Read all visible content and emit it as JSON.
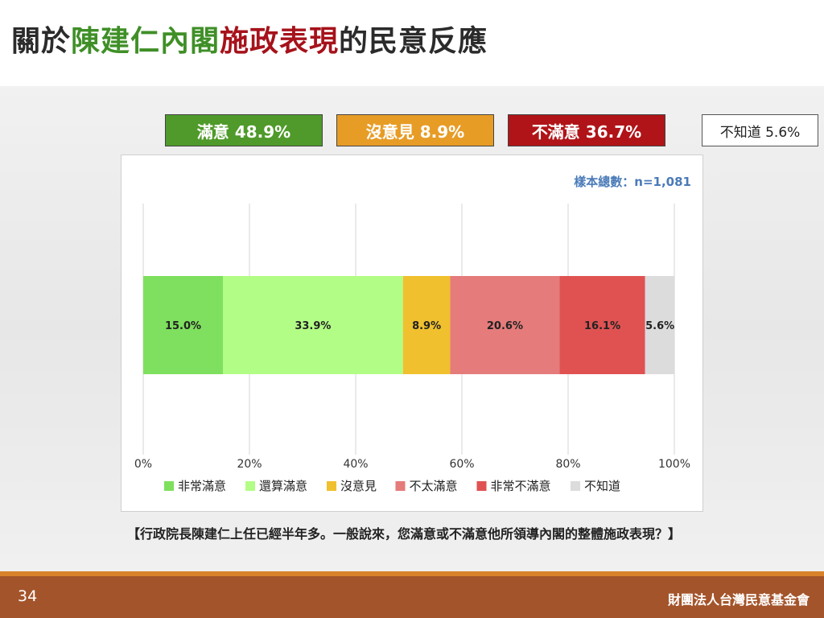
{
  "title": {
    "part1": "關於",
    "part2": "陳建仁內閣",
    "part3": "施政表現",
    "part4": "的民意反應"
  },
  "summary": {
    "satisfied": "滿意 48.9%",
    "neutral": "沒意見 8.9%",
    "dissatisfied": "不滿意 36.7%",
    "dont_know": "不知道 5.6%"
  },
  "sample_note": "樣本總數：n=1,081",
  "question": "【行政院長陳建仁上任已經半年多。一般說來，您滿意或不滿意他所領導內閣的整體施政表現？】",
  "footer": {
    "page": "34",
    "org": "財團法人台灣民意基金會"
  },
  "colors": {
    "title_green": "#3f8f27",
    "title_red": "#a6121b",
    "footer_brown": "#a4542b",
    "footer_orange": "#d9822b"
  },
  "chart_data": {
    "type": "bar",
    "orientation": "horizontal-stacked-100",
    "categories": [
      ""
    ],
    "series": [
      {
        "name": "非常滿意",
        "values": [
          15.0
        ],
        "label": "15.0%",
        "color": "#7ee05e"
      },
      {
        "name": "還算滿意",
        "values": [
          33.9
        ],
        "label": "33.9%",
        "color": "#b2fd85"
      },
      {
        "name": "沒意見",
        "values": [
          8.9
        ],
        "label": "8.9%",
        "color": "#f0c02e"
      },
      {
        "name": "不太滿意",
        "values": [
          20.6
        ],
        "label": "20.6%",
        "color": "#e57b7b"
      },
      {
        "name": "非常不滿意",
        "values": [
          16.1
        ],
        "label": "16.1%",
        "color": "#e05252"
      },
      {
        "name": "不知道",
        "values": [
          5.6
        ],
        "label": "5.6%",
        "color": "#dcdcdc"
      }
    ],
    "xlim": [
      0,
      100
    ],
    "xticks": [
      "0%",
      "20%",
      "40%",
      "60%",
      "80%",
      "100%"
    ],
    "grid": true,
    "legend": "bottom"
  }
}
